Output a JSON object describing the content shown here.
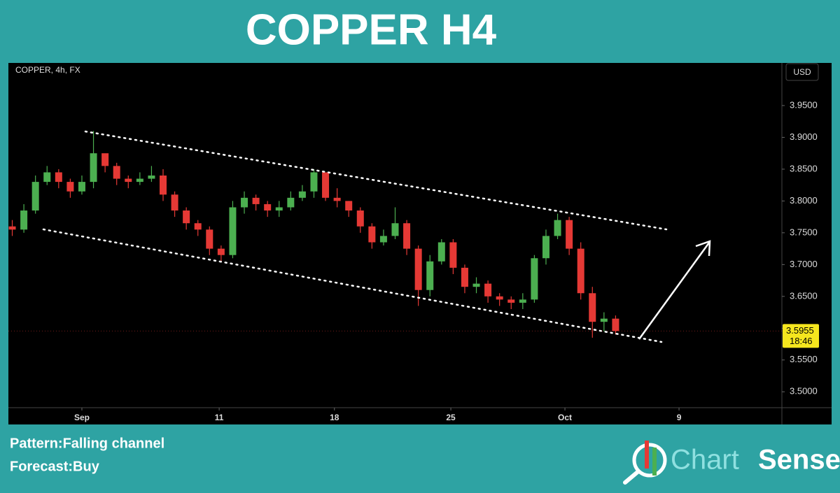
{
  "chart_data": {
    "type": "candlestick",
    "title": "COPPER H4",
    "symbol": "COPPER, 4h, FX",
    "currency": "USD",
    "up_color": "#4caf50",
    "down_color": "#e53935",
    "x": [
      1,
      4,
      7,
      10,
      13,
      16,
      19,
      22,
      25,
      28,
      31,
      34,
      37,
      40,
      43,
      46,
      49,
      52,
      55,
      58,
      61,
      64,
      67,
      70,
      73,
      76,
      79,
      82,
      85,
      88,
      91,
      94,
      97,
      100,
      103,
      106,
      109,
      112,
      115,
      118,
      121,
      124,
      127,
      130,
      133,
      136,
      139,
      142,
      145,
      148,
      151,
      154,
      157
    ],
    "open": [
      3.76,
      3.755,
      3.785,
      3.83,
      3.845,
      3.83,
      3.815,
      3.83,
      3.875,
      3.855,
      3.835,
      3.83,
      3.835,
      3.84,
      3.81,
      3.785,
      3.765,
      3.755,
      3.725,
      3.715,
      3.79,
      3.805,
      3.795,
      3.785,
      3.79,
      3.805,
      3.815,
      3.845,
      3.805,
      3.8,
      3.785,
      3.76,
      3.735,
      3.745,
      3.765,
      3.725,
      3.66,
      3.705,
      3.735,
      3.695,
      3.665,
      3.67,
      3.65,
      3.645,
      3.64,
      3.645,
      3.71,
      3.745,
      3.77,
      3.725,
      3.655,
      3.61,
      3.615
    ],
    "high": [
      3.77,
      3.795,
      3.84,
      3.855,
      3.85,
      3.835,
      3.84,
      3.91,
      3.87,
      3.86,
      3.84,
      3.845,
      3.855,
      3.85,
      3.815,
      3.79,
      3.77,
      3.76,
      3.73,
      3.8,
      3.815,
      3.81,
      3.8,
      3.8,
      3.815,
      3.825,
      3.85,
      3.845,
      3.82,
      3.8,
      3.79,
      3.765,
      3.755,
      3.79,
      3.77,
      3.73,
      3.715,
      3.74,
      3.74,
      3.7,
      3.68,
      3.675,
      3.655,
      3.65,
      3.655,
      3.715,
      3.755,
      3.78,
      3.775,
      3.735,
      3.665,
      3.625,
      3.62
    ],
    "low": [
      3.745,
      3.75,
      3.78,
      3.825,
      3.82,
      3.805,
      3.81,
      3.82,
      3.845,
      3.825,
      3.82,
      3.825,
      3.83,
      3.8,
      3.775,
      3.755,
      3.745,
      3.715,
      3.705,
      3.71,
      3.78,
      3.785,
      3.775,
      3.775,
      3.785,
      3.8,
      3.805,
      3.8,
      3.79,
      3.775,
      3.75,
      3.725,
      3.73,
      3.74,
      3.715,
      3.635,
      3.65,
      3.7,
      3.685,
      3.655,
      3.655,
      3.64,
      3.635,
      3.63,
      3.63,
      3.64,
      3.7,
      3.74,
      3.715,
      3.645,
      3.585,
      3.595,
      3.59
    ],
    "close": [
      3.755,
      3.785,
      3.83,
      3.845,
      3.83,
      3.815,
      3.83,
      3.875,
      3.855,
      3.835,
      3.83,
      3.835,
      3.84,
      3.81,
      3.785,
      3.765,
      3.755,
      3.725,
      3.715,
      3.79,
      3.805,
      3.795,
      3.785,
      3.79,
      3.805,
      3.815,
      3.845,
      3.805,
      3.8,
      3.785,
      3.76,
      3.735,
      3.745,
      3.765,
      3.725,
      3.66,
      3.705,
      3.735,
      3.695,
      3.665,
      3.67,
      3.65,
      3.645,
      3.64,
      3.645,
      3.71,
      3.745,
      3.77,
      3.725,
      3.655,
      3.61,
      3.615,
      3.5955
    ],
    "xlim": [
      0,
      200
    ],
    "xticks": [
      {
        "value": 19,
        "label": "Sep"
      },
      {
        "value": 54.5,
        "label": "11"
      },
      {
        "value": 84.3,
        "label": "18"
      },
      {
        "value": 114.4,
        "label": "25"
      },
      {
        "value": 143.9,
        "label": "Oct"
      },
      {
        "value": 173.4,
        "label": "9"
      }
    ],
    "ylim": [
      3.475,
      4.017
    ],
    "yticks": [
      {
        "value": 3.5,
        "label": "3.5000"
      },
      {
        "value": 3.55,
        "label": "3.5500"
      },
      {
        "value": 3.6,
        "label": "3.6000"
      },
      {
        "value": 3.65,
        "label": "3.6500"
      },
      {
        "value": 3.7,
        "label": "3.7000"
      },
      {
        "value": 3.75,
        "label": "3.7500"
      },
      {
        "value": 3.8,
        "label": "3.8000"
      },
      {
        "value": 3.85,
        "label": "3.8500"
      },
      {
        "value": 3.9,
        "label": "3.9000"
      },
      {
        "value": 3.95,
        "label": "3.9500"
      }
    ],
    "last_price": 3.5955,
    "countdown": "18:46"
  },
  "footer": {
    "pattern": "Pattern:Falling channel",
    "forecast": "Forecast:Buy",
    "brand_first": "Chart",
    "brand_second": "Sense"
  }
}
